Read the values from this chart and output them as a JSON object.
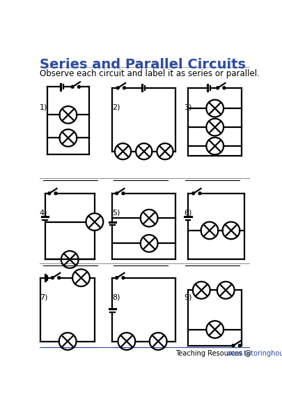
{
  "title": "Series and Parallel Circuits",
  "subtitle": "Observe each circuit and label it as series or parallel.",
  "title_color": "#2E4BA0",
  "title_fontsize": 14,
  "subtitle_fontsize": 8.5,
  "footer_text_black": "Teaching Resources @ ",
  "footer_text_blue": "www.tutoringhour.com",
  "footer_color": "#2E4BA0",
  "background_color": "#ffffff",
  "line_color": "#000000",
  "line_width": 1.6
}
